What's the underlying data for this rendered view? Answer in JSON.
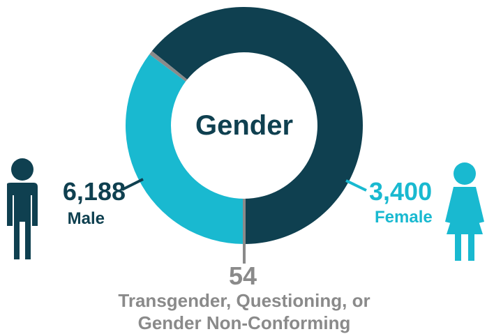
{
  "chart_data": {
    "type": "pie",
    "title": "Gender",
    "slices": [
      {
        "label": "Male",
        "value": 6188,
        "display": "6,188",
        "color": "#0f4050"
      },
      {
        "label": "Female",
        "value": 3400,
        "display": "3,400",
        "color": "#19b9d0"
      },
      {
        "label": "Transgender, Questioning, or Gender Non-Conforming",
        "value": 54,
        "display": "54",
        "color": "#8a8a8a"
      }
    ],
    "note_lines": [
      "Transgender, Questioning, or",
      "Gender Non-Conforming"
    ]
  },
  "icons": {
    "male": "male-person-icon",
    "female": "female-person-icon"
  }
}
